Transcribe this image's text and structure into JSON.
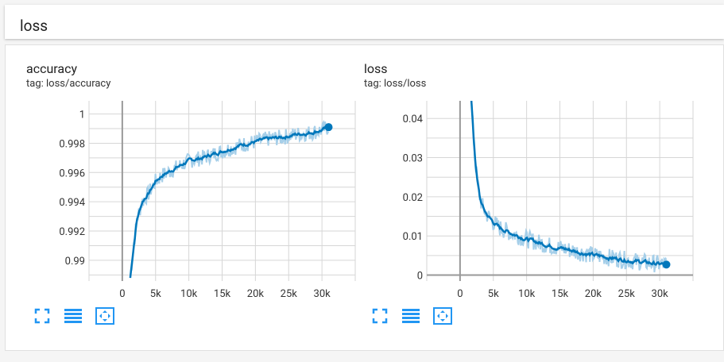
{
  "section": {
    "title": "loss"
  },
  "charts": [
    {
      "title": "accuracy",
      "tag": "tag: loss/accuracy",
      "y_ticks": [
        "1",
        "0.998",
        "0.996",
        "0.994",
        "0.992",
        "0.99"
      ],
      "x_ticks": [
        "0",
        "5k",
        "10k",
        "15k",
        "20k",
        "25k",
        "30k"
      ],
      "buttons": [
        "fullscreen-icon",
        "data-table-icon",
        "fit-domain-icon"
      ]
    },
    {
      "title": "loss",
      "tag": "tag: loss/loss",
      "y_ticks": [
        "0.04",
        "0.03",
        "0.02",
        "0.01",
        "0"
      ],
      "x_ticks": [
        "0",
        "5k",
        "10k",
        "15k",
        "20k",
        "25k",
        "30k"
      ],
      "buttons": [
        "fullscreen-icon",
        "data-table-icon",
        "fit-domain-icon"
      ]
    }
  ],
  "colors": {
    "line": "#0077bb",
    "raw": "#a6cfe9",
    "grid": "#d6d6d6",
    "axis": "#999999",
    "icon": "#2196f3"
  },
  "chart_data": [
    {
      "type": "line",
      "title": "accuracy",
      "xlim": [
        -5000,
        35000
      ],
      "ylim": [
        0.9888,
        1.0009
      ],
      "series": [
        {
          "x": [
            1200,
            1600,
            2200,
            3000,
            4000,
            5000,
            6000,
            8000,
            10000,
            12000,
            14000,
            16000,
            18000,
            20000,
            22000,
            24000,
            26000,
            28000,
            30000,
            31000
          ],
          "values": [
            0.9888,
            0.9905,
            0.9928,
            0.994,
            0.9946,
            0.9954,
            0.9958,
            0.9963,
            0.9968,
            0.997,
            0.9973,
            0.9976,
            0.9979,
            0.9981,
            0.9983,
            0.9984,
            0.9986,
            0.9987,
            0.9989,
            0.9991
          ]
        }
      ]
    },
    {
      "type": "line",
      "title": "loss",
      "xlim": [
        -5000,
        35000
      ],
      "ylim": [
        -0.0007,
        0.0445
      ],
      "series": [
        {
          "x": [
            1700,
            2000,
            2300,
            2600,
            3000,
            3500,
            4000,
            5000,
            6000,
            8000,
            10000,
            12000,
            14000,
            16000,
            18000,
            20000,
            22000,
            24000,
            26000,
            28000,
            30000,
            31000
          ],
          "values": [
            0.0445,
            0.036,
            0.029,
            0.024,
            0.0195,
            0.017,
            0.0155,
            0.0135,
            0.012,
            0.0105,
            0.0092,
            0.0082,
            0.0073,
            0.0066,
            0.0058,
            0.0051,
            0.0046,
            0.0041,
            0.0036,
            0.0032,
            0.0028,
            0.0027
          ]
        }
      ]
    }
  ]
}
